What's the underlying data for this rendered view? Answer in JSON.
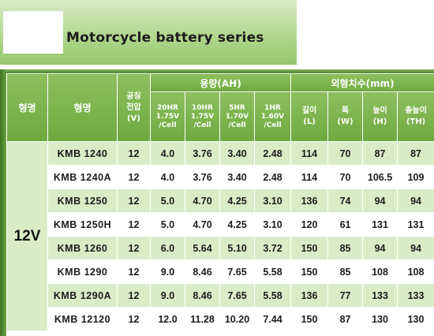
{
  "banner": {
    "title": "Motorcycle battery series"
  },
  "table": {
    "headers": {
      "type": "형명",
      "model": "형명",
      "voltage": [
        "공칭",
        "전압",
        "(V)"
      ],
      "capacity_group": "용량(AH)",
      "dimension_group": "외형치수(mm)",
      "capacity_cols": [
        [
          "20HR",
          "1.75V",
          "/Cell"
        ],
        [
          "10HR",
          "1.75V",
          "/Cell"
        ],
        [
          "5HR",
          "1.70V",
          "/Cell"
        ],
        [
          "1HR",
          "1.60V",
          "/Cell"
        ]
      ],
      "dimension_cols": [
        [
          "길이",
          "(L)"
        ],
        [
          "폭",
          "(W)"
        ],
        [
          "높이",
          "(H)"
        ],
        [
          "총높이",
          "(TH)"
        ]
      ]
    },
    "voltage_group": "12V",
    "rows": [
      {
        "model": "KMB 1240",
        "v": "12",
        "c20": "4.0",
        "c10": "3.76",
        "c5": "3.40",
        "c1": "2.48",
        "l": "114",
        "w": "70",
        "h": "87",
        "th": "87"
      },
      {
        "model": "KMB 1240A",
        "v": "12",
        "c20": "4.0",
        "c10": "3.76",
        "c5": "3.40",
        "c1": "2.48",
        "l": "114",
        "w": "70",
        "h": "106.5",
        "th": "109"
      },
      {
        "model": "KMB 1250",
        "v": "12",
        "c20": "5.0",
        "c10": "4.70",
        "c5": "4.25",
        "c1": "3.10",
        "l": "136",
        "w": "74",
        "h": "94",
        "th": "94"
      },
      {
        "model": "KMB 1250H",
        "v": "12",
        "c20": "5.0",
        "c10": "4.70",
        "c5": "4.25",
        "c1": "3.10",
        "l": "120",
        "w": "61",
        "h": "131",
        "th": "131"
      },
      {
        "model": "KMB 1260",
        "v": "12",
        "c20": "6.0",
        "c10": "5.64",
        "c5": "5.10",
        "c1": "3.72",
        "l": "150",
        "w": "85",
        "h": "94",
        "th": "94"
      },
      {
        "model": "KMB 1290",
        "v": "12",
        "c20": "9.0",
        "c10": "8.46",
        "c5": "7.65",
        "c1": "5.58",
        "l": "150",
        "w": "85",
        "h": "108",
        "th": "108"
      },
      {
        "model": "KMB 1290A",
        "v": "12",
        "c20": "9.0",
        "c10": "8.46",
        "c5": "7.65",
        "c1": "5.58",
        "l": "136",
        "w": "77",
        "h": "133",
        "th": "133"
      },
      {
        "model": "KMB 12120",
        "v": "12",
        "c20": "12.0",
        "c10": "11.28",
        "c5": "10.20",
        "c1": "7.44",
        "l": "150",
        "w": "87",
        "h": "130",
        "th": "130"
      }
    ]
  }
}
